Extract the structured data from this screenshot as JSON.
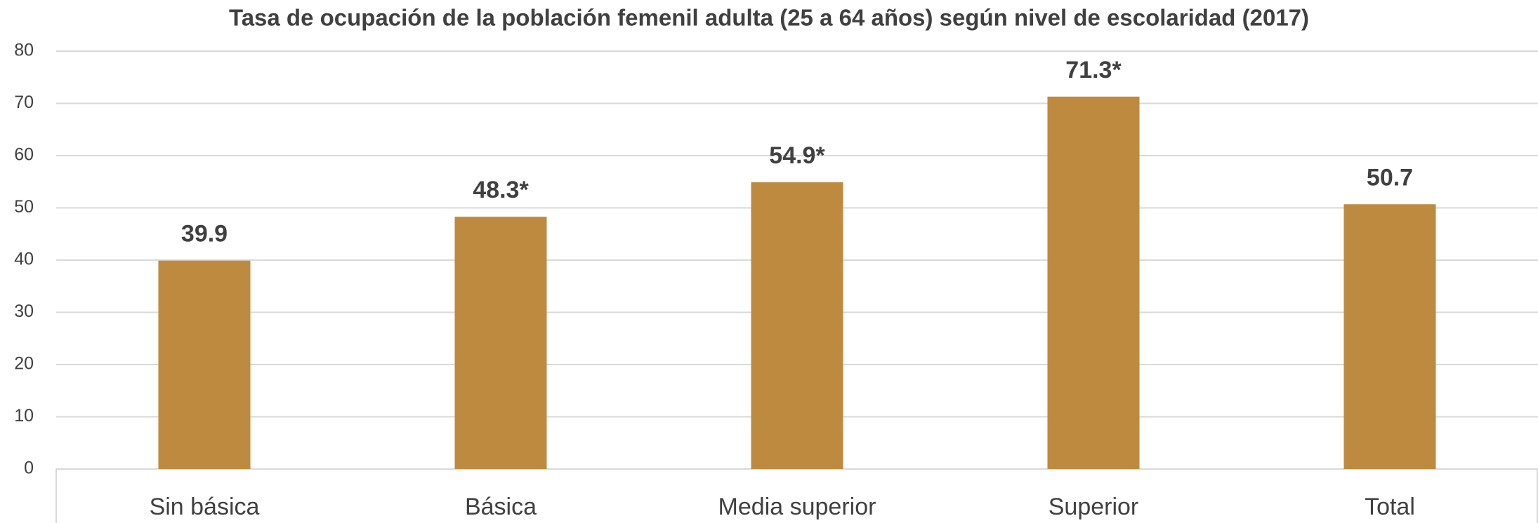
{
  "chart_data": {
    "type": "bar",
    "title": "Tasa de ocupación de la población femenil adulta (25 a 64 años) según nivel de escolaridad (2017)",
    "categories": [
      "Sin básica",
      "Básica",
      "Media superior",
      "Superior",
      "Total"
    ],
    "values": [
      39.9,
      48.3,
      54.9,
      71.3,
      50.7
    ],
    "value_labels": [
      "39.9",
      "48.3*",
      "54.9*",
      "71.3*",
      "50.7"
    ],
    "color": "#be8a3f",
    "ylim": [
      0,
      80
    ],
    "yticks": [
      0,
      10,
      20,
      30,
      40,
      50,
      60,
      70,
      80
    ],
    "grid": true
  }
}
